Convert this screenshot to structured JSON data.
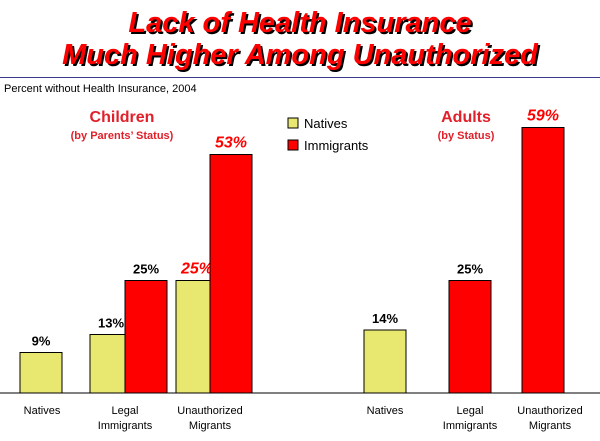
{
  "header": {
    "title_line1": "Lack of Health Insurance",
    "title_line2": "Much Higher Among Unauthorized"
  },
  "subtitle": "Percent without Health Insurance, 2004",
  "colors": {
    "natives": "#e8e870",
    "immigrants": "#ff0000",
    "accent": "#e0202a",
    "title": "#ff0000"
  },
  "chart_data": {
    "type": "bar",
    "ylim": [
      0,
      60
    ],
    "legend": {
      "placement": "top-center",
      "entries": [
        {
          "name": "Natives",
          "color": "#e8e870"
        },
        {
          "name": "Immigrants",
          "color": "#ff0000"
        }
      ]
    },
    "panels": [
      {
        "heading": "Children",
        "subheading": "(by Parents’ Status)",
        "groups": [
          {
            "category": "Natives",
            "bars": [
              {
                "series": "Natives",
                "value": 9,
                "label": "9%"
              }
            ]
          },
          {
            "category": "Legal Immigrants",
            "category_lines": [
              "Legal",
              "Immigrants"
            ],
            "bars": [
              {
                "series": "Natives",
                "value": 13,
                "label": "13%"
              },
              {
                "series": "Immigrants",
                "value": 25,
                "label": "25%"
              }
            ]
          },
          {
            "category": "Unauthorized Migrants",
            "category_lines": [
              "Unauthorized",
              "Migrants"
            ],
            "bars": [
              {
                "series": "Natives",
                "value": 25,
                "label": "25%",
                "highlight": true
              },
              {
                "series": "Immigrants",
                "value": 53,
                "label": "53%",
                "highlight": true
              }
            ]
          }
        ]
      },
      {
        "heading": "Adults",
        "subheading": "(by Status)",
        "groups": [
          {
            "category": "Natives",
            "bars": [
              {
                "series": "Natives",
                "value": 14,
                "label": "14%"
              }
            ]
          },
          {
            "category": "Legal Immigrants",
            "category_lines": [
              "Legal",
              "Immigrants"
            ],
            "bars": [
              {
                "series": "Immigrants",
                "value": 25,
                "label": "25%"
              }
            ]
          },
          {
            "category": "Unauthorized Migrants",
            "category_lines": [
              "Unauthorized",
              "Migrants"
            ],
            "bars": [
              {
                "series": "Immigrants",
                "value": 59,
                "label": "59%",
                "highlight": true
              }
            ]
          }
        ]
      }
    ]
  }
}
